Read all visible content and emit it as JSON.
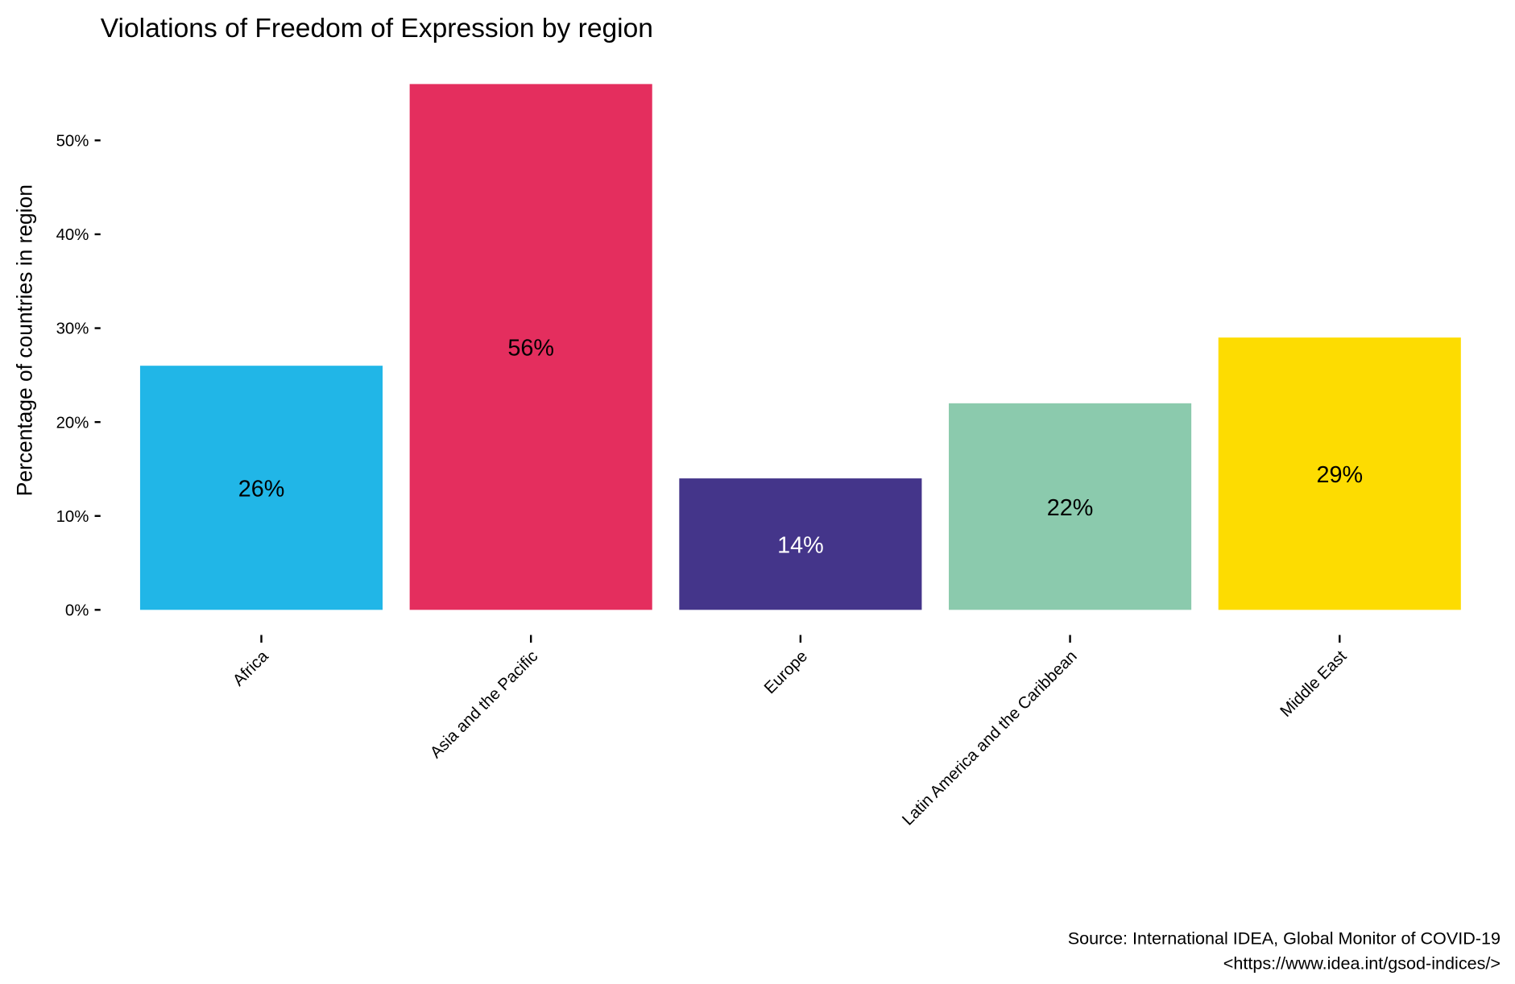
{
  "chart_data": {
    "type": "bar",
    "title": "Violations of Freedom of Expression by region",
    "xlabel": "",
    "ylabel": "Percentage of countries in region",
    "ylim": [
      0,
      56
    ],
    "yticks": [
      0,
      10,
      20,
      30,
      40,
      50
    ],
    "ytick_labels": [
      "0%",
      "10%",
      "20%",
      "30%",
      "40%",
      "50%"
    ],
    "grid": false,
    "categories": [
      "Africa",
      "Asia and the Pacific",
      "Europe",
      "Latin America and the Caribbean",
      "Middle East"
    ],
    "values": [
      26,
      56,
      14,
      22,
      29
    ],
    "data_labels": [
      "26%",
      "56%",
      "14%",
      "22%",
      "29%"
    ],
    "colors": [
      "#21B6E7",
      "#E42E5E",
      "#44358A",
      "#8BCAAD",
      "#FDDC01"
    ],
    "label_colors": [
      "#000000",
      "#000000",
      "#FFFFFF",
      "#000000",
      "#000000"
    ],
    "caption": [
      "Source: International IDEA, Global Monitor of COVID-19",
      "<https://www.idea.int/gsod-indices/>"
    ]
  }
}
